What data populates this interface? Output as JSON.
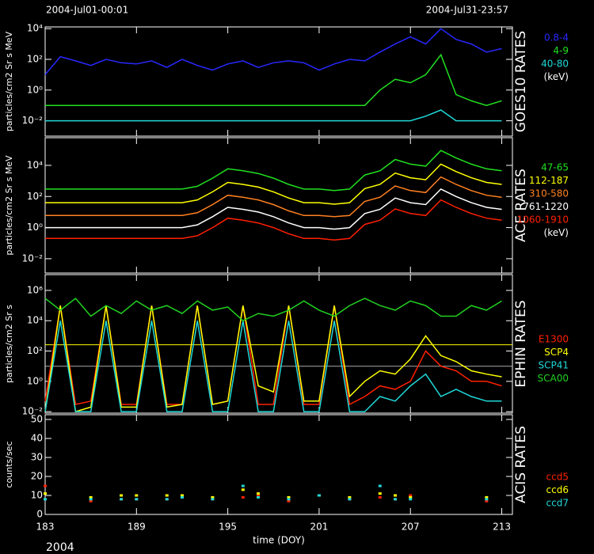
{
  "chart_data": [
    {
      "type": "line",
      "title": "GOES10 RATES",
      "ylabel": "particles/cm2 Sr s MeV",
      "log": true,
      "start_label": "2004-Jul01-00:01",
      "end_label": "2004-Jul31-23:57",
      "legend_unit": "(keV)",
      "xlim": [
        183,
        213.7
      ],
      "ylim": [
        0.001,
        13000
      ],
      "yticks": [
        {
          "value": 0.01,
          "label": "10⁻²"
        },
        {
          "value": 1,
          "label": "10⁰"
        },
        {
          "value": 100,
          "label": "10²"
        },
        {
          "value": 10000,
          "label": "10⁴"
        }
      ],
      "x": [
        183,
        184,
        185,
        186,
        187,
        188,
        189,
        190,
        191,
        192,
        193,
        194,
        195,
        196,
        197,
        198,
        199,
        200,
        201,
        202,
        203,
        204,
        205,
        206,
        207,
        208,
        209,
        210,
        211,
        212,
        213
      ],
      "series": [
        {
          "name": "0.8-4",
          "color": "#2828ff",
          "values": [
            10,
            150,
            80,
            40,
            100,
            60,
            50,
            80,
            30,
            100,
            40,
            20,
            50,
            80,
            30,
            60,
            80,
            60,
            20,
            50,
            100,
            80,
            300,
            1000,
            3000,
            1000,
            10000,
            2000,
            1000,
            300,
            500
          ]
        },
        {
          "name": "4-9",
          "color": "#20e020",
          "values": [
            0.1,
            0.1,
            0.1,
            0.1,
            0.1,
            0.1,
            0.1,
            0.1,
            0.1,
            0.1,
            0.1,
            0.1,
            0.1,
            0.1,
            0.1,
            0.1,
            0.1,
            0.1,
            0.1,
            0.1,
            0.1,
            0.1,
            1,
            5,
            3,
            10,
            200,
            0.5,
            0.2,
            0.1,
            0.2
          ]
        },
        {
          "name": "40-80",
          "color": "#20d8d8",
          "values": [
            0.01,
            0.01,
            0.01,
            0.01,
            0.01,
            0.01,
            0.01,
            0.01,
            0.01,
            0.01,
            0.01,
            0.01,
            0.01,
            0.01,
            0.01,
            0.01,
            0.01,
            0.01,
            0.01,
            0.01,
            0.01,
            0.01,
            0.01,
            0.01,
            0.01,
            0.02,
            0.05,
            0.01,
            0.01,
            0.01,
            0.01
          ]
        }
      ]
    },
    {
      "type": "line",
      "title": "ACE RATES",
      "ylabel": "particles/cm2 Sr s MeV",
      "log": true,
      "legend_unit": "(keV)",
      "xlim": [
        183,
        213.7
      ],
      "ylim": [
        0.0012,
        600000
      ],
      "yticks": [
        {
          "value": 0.01,
          "label": "10⁻²"
        },
        {
          "value": 1,
          "label": "10⁰"
        },
        {
          "value": 100,
          "label": "10²"
        },
        {
          "value": 10000,
          "label": "10⁴"
        }
      ],
      "x": [
        183,
        184,
        185,
        186,
        187,
        188,
        189,
        190,
        191,
        192,
        193,
        194,
        195,
        196,
        197,
        198,
        199,
        200,
        201,
        202,
        203,
        204,
        205,
        206,
        207,
        208,
        209,
        210,
        211,
        212,
        213
      ],
      "series": [
        {
          "name": "47-65",
          "color": "#20e020",
          "values": [
            300,
            300,
            300,
            300,
            300,
            300,
            300,
            300,
            300,
            300,
            450,
            1500,
            6000,
            4500,
            3000,
            1500,
            600,
            300,
            300,
            240,
            300,
            2400,
            4500,
            24000,
            12000,
            9000,
            90000,
            30000,
            12000,
            6000,
            4500
          ]
        },
        {
          "name": "112-187",
          "color": "#ffff00",
          "values": [
            40,
            40,
            40,
            40,
            40,
            40,
            40,
            40,
            40,
            40,
            60,
            200,
            800,
            600,
            400,
            200,
            80,
            40,
            40,
            32,
            40,
            320,
            600,
            3200,
            1600,
            1200,
            12000,
            4000,
            1600,
            800,
            600
          ]
        },
        {
          "name": "310-580",
          "color": "#ff8020",
          "values": [
            6,
            6,
            6,
            6,
            6,
            6,
            6,
            6,
            6,
            6,
            9,
            30,
            120,
            90,
            60,
            30,
            12,
            6,
            6,
            5,
            6,
            48,
            90,
            480,
            240,
            180,
            1800,
            600,
            240,
            120,
            90
          ]
        },
        {
          "name": "761-1220",
          "color": "#ffffff",
          "values": [
            1,
            1,
            1,
            1,
            1,
            1,
            1,
            1,
            1,
            1,
            1.5,
            5,
            20,
            15,
            10,
            5,
            2,
            1,
            1,
            0.8,
            1,
            8,
            15,
            80,
            40,
            30,
            300,
            100,
            40,
            20,
            15
          ]
        },
        {
          "name": "1060-1910",
          "color": "#ff2000",
          "values": [
            0.2,
            0.2,
            0.2,
            0.2,
            0.2,
            0.2,
            0.2,
            0.2,
            0.2,
            0.2,
            0.3,
            1,
            4,
            3,
            2,
            1,
            0.4,
            0.2,
            0.2,
            0.16,
            0.2,
            1.6,
            3,
            16,
            8,
            6,
            60,
            20,
            8,
            4,
            3
          ]
        }
      ]
    },
    {
      "type": "line",
      "title": "EPHIN RATES",
      "ylabel": "particles/cm2 Sr s",
      "log": true,
      "xlim": [
        183,
        213.7
      ],
      "ylim": [
        0.008,
        11000000
      ],
      "yticks": [
        {
          "value": 0.01,
          "label": "10⁻²"
        },
        {
          "value": 1,
          "label": "10⁰"
        },
        {
          "value": 100,
          "label": "10²"
        },
        {
          "value": 10000,
          "label": "10⁴"
        },
        {
          "value": 1000000,
          "label": "10⁶"
        }
      ],
      "thresholds": [
        {
          "value": 260,
          "color": "#ffff00"
        },
        {
          "value": 10,
          "color": "#aaaaaa"
        }
      ],
      "x": [
        183,
        184,
        185,
        186,
        187,
        188,
        189,
        190,
        191,
        192,
        193,
        194,
        195,
        196,
        197,
        198,
        199,
        200,
        201,
        202,
        203,
        204,
        205,
        206,
        207,
        208,
        209,
        210,
        211,
        212,
        213
      ],
      "series": [
        {
          "name": "E1300",
          "color": "#ff2000",
          "values": [
            0.05,
            100000,
            0.03,
            0.05,
            100000,
            0.03,
            0.03,
            100000,
            0.03,
            0.03,
            100000,
            0.03,
            0.05,
            100000,
            0.03,
            0.03,
            100000,
            0.03,
            0.03,
            100000,
            0.03,
            0.1,
            0.5,
            0.3,
            1,
            100,
            10,
            5,
            1,
            1,
            0.5
          ]
        },
        {
          "name": "SCP4",
          "color": "#ffff00",
          "values": [
            0.01,
            100000,
            0.01,
            0.02,
            100000,
            0.02,
            0.02,
            100000,
            0.02,
            0.03,
            100000,
            0.03,
            0.05,
            100000,
            0.5,
            0.2,
            100000,
            0.05,
            0.05,
            100000,
            0.1,
            1,
            5,
            3,
            30,
            1000,
            50,
            20,
            5,
            3,
            2
          ]
        },
        {
          "name": "SCP41",
          "color": "#20d8d8",
          "values": [
            0.01,
            10000,
            0.01,
            0.01,
            10000,
            0.01,
            0.01,
            10000,
            0.01,
            0.01,
            10000,
            0.01,
            0.01,
            10000,
            0.01,
            0.01,
            10000,
            0.01,
            0.01,
            10000,
            0.01,
            0.01,
            0.1,
            0.05,
            0.5,
            3,
            0.1,
            0.3,
            0.1,
            0.05,
            0.05
          ]
        },
        {
          "name": "SCA00",
          "color": "#20d020",
          "values": [
            300000,
            50000,
            300000,
            20000,
            100000,
            30000,
            200000,
            50000,
            100000,
            30000,
            200000,
            50000,
            80000,
            10000,
            30000,
            20000,
            50000,
            200000,
            50000,
            20000,
            100000,
            300000,
            100000,
            50000,
            200000,
            100000,
            20000,
            20000,
            100000,
            50000,
            200000
          ]
        }
      ]
    },
    {
      "type": "scatter",
      "title": "ACIS RATES",
      "ylabel": "counts/sec",
      "log": false,
      "xlabel": "time (DOY)",
      "year_label": "2004",
      "xlim": [
        183,
        213.7
      ],
      "ylim": [
        0,
        52.5
      ],
      "xticks": [
        183,
        189,
        195,
        201,
        207,
        213
      ],
      "yticks": [
        0,
        10,
        20,
        30,
        40,
        50
      ],
      "x": [
        183,
        184,
        185,
        186,
        187,
        188,
        189,
        190,
        191,
        192,
        193,
        194,
        195,
        196,
        197,
        198,
        199,
        200,
        201,
        202,
        203,
        204,
        205,
        206,
        207,
        208,
        209,
        210,
        211,
        212,
        213
      ],
      "series": [
        {
          "name": "ccd5",
          "color": "#ff2000",
          "values": [
            15,
            null,
            null,
            7,
            null,
            8,
            8,
            null,
            8,
            9,
            null,
            8,
            null,
            9,
            10,
            null,
            7,
            null,
            10,
            null,
            8,
            null,
            9,
            8,
            10,
            null,
            null,
            null,
            null,
            7,
            null
          ]
        },
        {
          "name": "ccd6",
          "color": "#ffff00",
          "values": [
            11,
            null,
            null,
            9,
            null,
            10,
            10,
            null,
            10,
            10,
            null,
            9,
            null,
            13,
            11,
            null,
            9,
            null,
            10,
            null,
            9,
            null,
            11,
            10,
            9,
            null,
            null,
            null,
            null,
            9,
            null
          ]
        },
        {
          "name": "ccd7",
          "color": "#20d8d8",
          "values": [
            8,
            null,
            null,
            8,
            null,
            8,
            8,
            null,
            8,
            9,
            null,
            8,
            null,
            15,
            9,
            null,
            8,
            null,
            10,
            null,
            8,
            null,
            15,
            8,
            8,
            null,
            null,
            null,
            null,
            8,
            null
          ]
        }
      ]
    }
  ]
}
